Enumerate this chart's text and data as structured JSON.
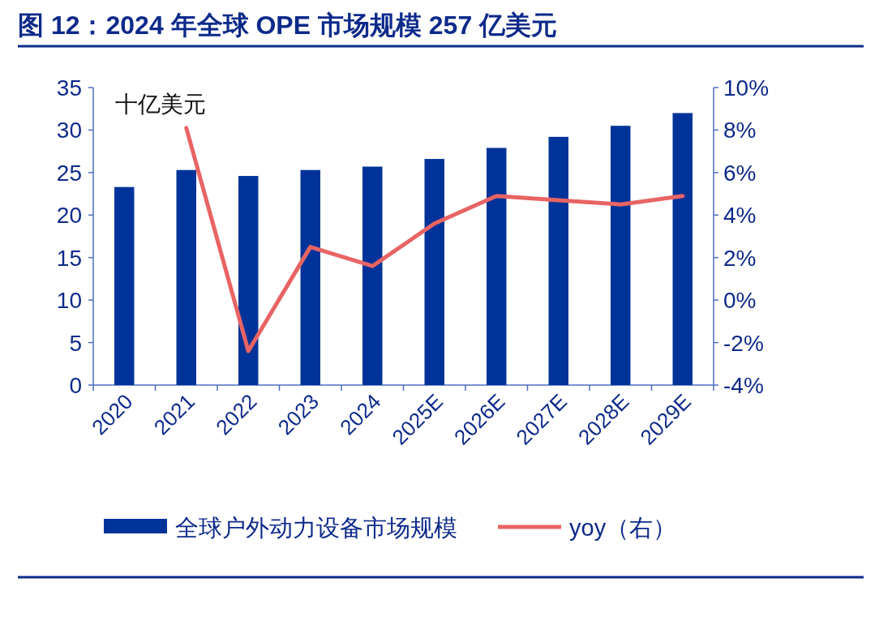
{
  "chart_data": {
    "type": "bar",
    "title": "图 12：2024 年全球 OPE 市场规模 257 亿美元",
    "ylabel": "十亿美元",
    "categories": [
      "2020",
      "2021",
      "2022",
      "2023",
      "2024",
      "2025E",
      "2026E",
      "2027E",
      "2028E",
      "2029E"
    ],
    "series": [
      {
        "name": "全球户外动力设备市场规模",
        "color": "#003399",
        "values": [
          23.3,
          25.3,
          24.6,
          25.3,
          25.7,
          26.6,
          27.9,
          29.2,
          30.5,
          32.0
        ]
      },
      {
        "name": "yoy（右）",
        "type": "line",
        "axis": "y2",
        "color": "#e86464",
        "values": [
          null,
          8.1,
          -2.4,
          2.5,
          1.6,
          3.6,
          4.9,
          4.7,
          4.5,
          4.9
        ]
      }
    ],
    "ylim": [
      0,
      35
    ],
    "yticks": [
      0,
      5,
      10,
      15,
      20,
      25,
      30,
      35
    ],
    "y2lim": [
      -4,
      10
    ],
    "y2ticks": [
      {
        "value": -4,
        "label": "-4%"
      },
      {
        "value": -2,
        "label": "-2%"
      },
      {
        "value": 0,
        "label": "0%"
      },
      {
        "value": 2,
        "label": "2%"
      },
      {
        "value": 4,
        "label": "4%"
      },
      {
        "value": 6,
        "label": "6%"
      },
      {
        "value": 8,
        "label": "8%"
      },
      {
        "value": 10,
        "label": "10%"
      }
    ],
    "legend": "bottom"
  }
}
